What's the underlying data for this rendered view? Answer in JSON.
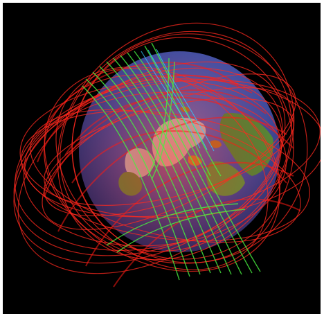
{
  "image": {
    "description_for_agent": "",
    "colors": {
      "background": "#000000",
      "frame": "#ffffff",
      "globe_ocean": "#3f4fa3",
      "globe_land_green": "#4f8f3a",
      "globe_land_ice": "#c9c9c9",
      "orbits_red": "#ff2a1f",
      "orbits_green": "#48f040",
      "orbits_blue": "#2fd0ff"
    }
  }
}
